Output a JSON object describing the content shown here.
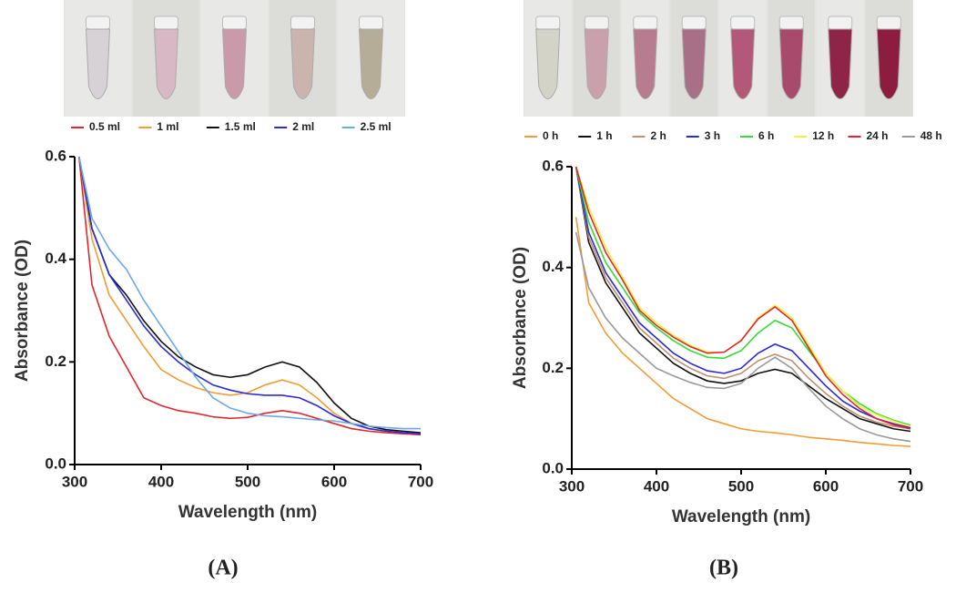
{
  "chart_data": [
    {
      "type": "line",
      "panel_label": "(A)",
      "x_label": "Wavelength (nm)",
      "y_label": "Absorbance (OD)",
      "xlim": [
        300,
        700
      ],
      "xticks": [
        300,
        400,
        500,
        600,
        700
      ],
      "ylim": [
        0,
        0.6
      ],
      "yticks": [
        {
          "value": 0,
          "label": "0.0"
        },
        0.2,
        0.4,
        0.6
      ],
      "x": [
        305,
        320,
        340,
        360,
        380,
        400,
        420,
        440,
        460,
        480,
        500,
        520,
        540,
        560,
        580,
        600,
        620,
        640,
        660,
        680,
        700
      ],
      "series": [
        {
          "name": "0.5 ml",
          "color": "#e3262d",
          "values": [
            0.6,
            0.35,
            0.25,
            0.19,
            0.13,
            0.115,
            0.105,
            0.1,
            0.093,
            0.09,
            0.092,
            0.1,
            0.105,
            0.1,
            0.09,
            0.08,
            0.07,
            0.065,
            0.062,
            0.06,
            0.058
          ]
        },
        {
          "name": "1 ml",
          "color": "#f39c33",
          "values": [
            0.6,
            0.44,
            0.33,
            0.28,
            0.23,
            0.185,
            0.165,
            0.15,
            0.14,
            0.135,
            0.14,
            0.155,
            0.165,
            0.155,
            0.13,
            0.1,
            0.08,
            0.07,
            0.065,
            0.062,
            0.06
          ]
        },
        {
          "name": "1.5 ml",
          "color": "#111111",
          "values": [
            0.6,
            0.46,
            0.37,
            0.33,
            0.28,
            0.24,
            0.21,
            0.19,
            0.175,
            0.17,
            0.175,
            0.19,
            0.2,
            0.19,
            0.16,
            0.12,
            0.09,
            0.075,
            0.068,
            0.065,
            0.062
          ]
        },
        {
          "name": "2 ml",
          "color": "#2a2ad8",
          "values": [
            0.6,
            0.46,
            0.37,
            0.32,
            0.27,
            0.23,
            0.2,
            0.175,
            0.155,
            0.145,
            0.138,
            0.135,
            0.135,
            0.13,
            0.115,
            0.095,
            0.08,
            0.07,
            0.065,
            0.062,
            0.06
          ]
        },
        {
          "name": "2.5 ml",
          "color": "#6fa8e6",
          "values": [
            0.6,
            0.48,
            0.42,
            0.38,
            0.32,
            0.27,
            0.22,
            0.17,
            0.13,
            0.11,
            0.1,
            0.095,
            0.093,
            0.09,
            0.087,
            0.085,
            0.08,
            0.075,
            0.072,
            0.07,
            0.07
          ]
        }
      ]
    },
    {
      "type": "line",
      "panel_label": "(B)",
      "x_label": "Wavelength (nm)",
      "y_label": "Absorbance (OD)",
      "xlim": [
        300,
        700
      ],
      "xticks": [
        300,
        400,
        500,
        600,
        700
      ],
      "ylim": [
        0,
        0.6
      ],
      "yticks": [
        {
          "value": 0,
          "label": "0.0"
        },
        0.2,
        0.4,
        0.6
      ],
      "x": [
        305,
        320,
        340,
        360,
        380,
        400,
        420,
        440,
        460,
        480,
        500,
        520,
        540,
        560,
        580,
        600,
        620,
        640,
        660,
        680,
        700
      ],
      "series": [
        {
          "name": "0 h",
          "color": "#f39c33",
          "values": [
            0.5,
            0.33,
            0.27,
            0.23,
            0.2,
            0.17,
            0.14,
            0.12,
            0.1,
            0.09,
            0.08,
            0.075,
            0.072,
            0.068,
            0.063,
            0.06,
            0.057,
            0.053,
            0.05,
            0.047,
            0.045
          ]
        },
        {
          "name": "1 h",
          "color": "#111111",
          "values": [
            0.6,
            0.45,
            0.37,
            0.32,
            0.27,
            0.24,
            0.21,
            0.19,
            0.175,
            0.17,
            0.175,
            0.19,
            0.198,
            0.19,
            0.165,
            0.14,
            0.12,
            0.1,
            0.09,
            0.08,
            0.075
          ]
        },
        {
          "name": "2 h",
          "color": "#c09070",
          "values": [
            0.6,
            0.46,
            0.38,
            0.33,
            0.28,
            0.25,
            0.22,
            0.2,
            0.185,
            0.18,
            0.19,
            0.215,
            0.228,
            0.215,
            0.18,
            0.15,
            0.125,
            0.105,
            0.093,
            0.085,
            0.08
          ]
        },
        {
          "name": "3 h",
          "color": "#2a2ad8",
          "values": [
            0.6,
            0.47,
            0.39,
            0.34,
            0.29,
            0.26,
            0.23,
            0.21,
            0.195,
            0.19,
            0.2,
            0.23,
            0.248,
            0.235,
            0.2,
            0.165,
            0.135,
            0.115,
            0.1,
            0.09,
            0.082
          ]
        },
        {
          "name": "6 h",
          "color": "#33dd33",
          "values": [
            0.6,
            0.49,
            0.41,
            0.36,
            0.31,
            0.28,
            0.255,
            0.235,
            0.222,
            0.22,
            0.235,
            0.27,
            0.295,
            0.28,
            0.235,
            0.19,
            0.155,
            0.13,
            0.11,
            0.097,
            0.087
          ]
        },
        {
          "name": "12 h",
          "color": "#f0f040",
          "values": [
            0.6,
            0.52,
            0.44,
            0.38,
            0.32,
            0.29,
            0.265,
            0.245,
            0.232,
            0.232,
            0.255,
            0.3,
            0.325,
            0.3,
            0.245,
            0.19,
            0.155,
            0.125,
            0.108,
            0.095,
            0.085
          ]
        },
        {
          "name": "24 h",
          "color": "#e3262d",
          "values": [
            0.6,
            0.51,
            0.43,
            0.375,
            0.315,
            0.285,
            0.262,
            0.243,
            0.23,
            0.232,
            0.255,
            0.298,
            0.322,
            0.295,
            0.24,
            0.185,
            0.148,
            0.12,
            0.1,
            0.088,
            0.08
          ]
        },
        {
          "name": "48 h",
          "color": "#999999",
          "values": [
            0.47,
            0.36,
            0.3,
            0.26,
            0.23,
            0.2,
            0.185,
            0.172,
            0.162,
            0.16,
            0.17,
            0.2,
            0.222,
            0.2,
            0.16,
            0.125,
            0.1,
            0.08,
            0.068,
            0.06,
            0.055
          ]
        }
      ]
    }
  ]
}
